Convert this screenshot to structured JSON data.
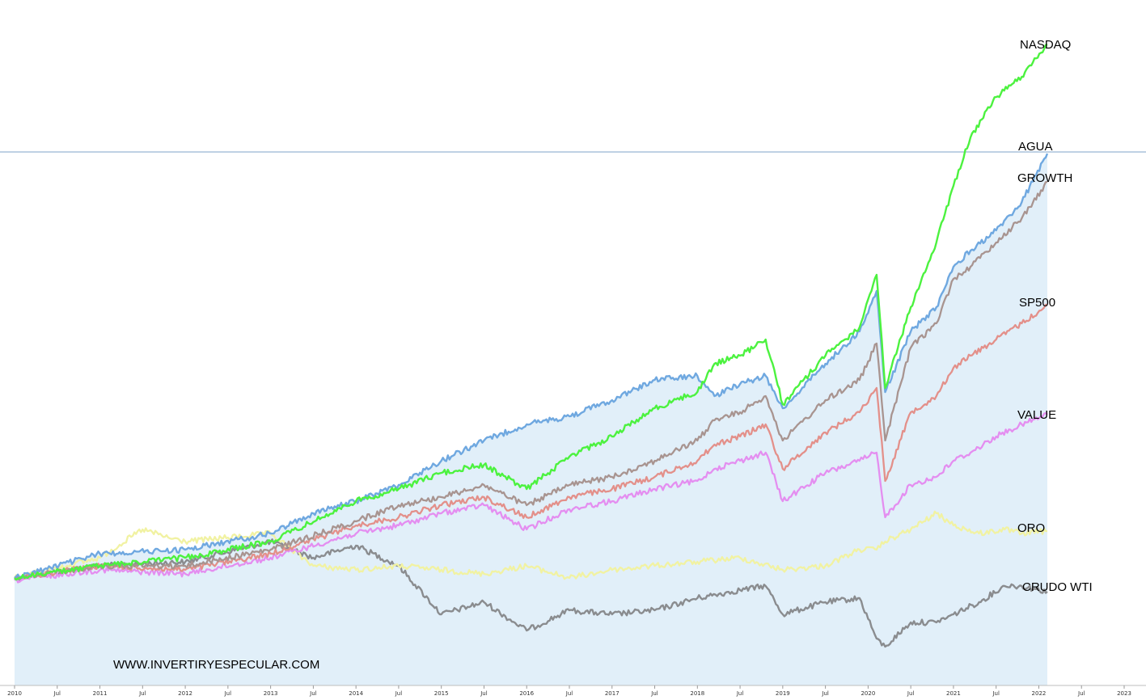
{
  "chart_data": {
    "type": "line",
    "title": "",
    "xlabel": "",
    "ylabel": "",
    "x_ticks": [
      "2010",
      "Jul",
      "2011",
      "Jul",
      "2012",
      "Jul",
      "2013",
      "Jul",
      "2014",
      "Jul",
      "2015",
      "Jul",
      "2016",
      "Jul",
      "2017",
      "Jul",
      "2018",
      "Jul",
      "2019",
      "Jul",
      "2020",
      "Jul",
      "2021",
      "Jul",
      "2022",
      "Jul",
      "2023"
    ],
    "xlim": [
      "2010-01",
      "2023-01"
    ],
    "grid": false,
    "legend": "none",
    "watermark": "WWW.INVERTIRYESPECULAR.COM",
    "reference_line": {
      "series": "AGUA",
      "color": "#7fa3c8"
    },
    "series": [
      {
        "name": "NASDAQ",
        "color": "#4cf23f",
        "width": 2.4,
        "points": [
          [
            2010.0,
            715
          ],
          [
            2011.0,
            700
          ],
          [
            2012.0,
            690
          ],
          [
            2013.0,
            670
          ],
          [
            2014.0,
            620
          ],
          [
            2014.5,
            605
          ],
          [
            2015.0,
            585
          ],
          [
            2015.5,
            575
          ],
          [
            2016.0,
            605
          ],
          [
            2016.5,
            565
          ],
          [
            2017.0,
            540
          ],
          [
            2017.5,
            505
          ],
          [
            2018.0,
            485
          ],
          [
            2018.2,
            450
          ],
          [
            2018.5,
            440
          ],
          [
            2018.8,
            420
          ],
          [
            2019.0,
            500
          ],
          [
            2019.5,
            440
          ],
          [
            2019.9,
            405
          ],
          [
            2020.1,
            340
          ],
          [
            2020.2,
            480
          ],
          [
            2020.5,
            380
          ],
          [
            2020.8,
            300
          ],
          [
            2021.0,
            230
          ],
          [
            2021.2,
            170
          ],
          [
            2021.5,
            120
          ],
          [
            2021.8,
            95
          ],
          [
            2022.1,
            55
          ]
        ]
      },
      {
        "name": "AGUA",
        "color": "#6fa8e0",
        "width": 2.4,
        "points": [
          [
            2010.0,
            715
          ],
          [
            2011.0,
            685
          ],
          [
            2012.0,
            680
          ],
          [
            2013.0,
            660
          ],
          [
            2013.5,
            635
          ],
          [
            2014.0,
            620
          ],
          [
            2014.5,
            600
          ],
          [
            2015.0,
            570
          ],
          [
            2015.5,
            545
          ],
          [
            2016.0,
            525
          ],
          [
            2016.5,
            515
          ],
          [
            2017.0,
            495
          ],
          [
            2017.5,
            470
          ],
          [
            2018.0,
            465
          ],
          [
            2018.2,
            490
          ],
          [
            2018.5,
            475
          ],
          [
            2018.8,
            465
          ],
          [
            2019.0,
            505
          ],
          [
            2019.5,
            450
          ],
          [
            2019.9,
            410
          ],
          [
            2020.1,
            360
          ],
          [
            2020.2,
            485
          ],
          [
            2020.5,
            410
          ],
          [
            2020.8,
            380
          ],
          [
            2021.0,
            330
          ],
          [
            2021.2,
            310
          ],
          [
            2021.5,
            285
          ],
          [
            2021.8,
            250
          ],
          [
            2022.1,
            190
          ]
        ]
      },
      {
        "name": "GROWTH",
        "color": "#a89490",
        "width": 2.3,
        "points": [
          [
            2010.0,
            715
          ],
          [
            2011.0,
            700
          ],
          [
            2012.0,
            700
          ],
          [
            2013.0,
            680
          ],
          [
            2014.0,
            645
          ],
          [
            2014.5,
            625
          ],
          [
            2015.0,
            615
          ],
          [
            2015.5,
            600
          ],
          [
            2016.0,
            625
          ],
          [
            2016.5,
            600
          ],
          [
            2017.0,
            590
          ],
          [
            2017.5,
            570
          ],
          [
            2018.0,
            545
          ],
          [
            2018.2,
            520
          ],
          [
            2018.5,
            510
          ],
          [
            2018.8,
            490
          ],
          [
            2019.0,
            545
          ],
          [
            2019.5,
            495
          ],
          [
            2019.9,
            470
          ],
          [
            2020.1,
            425
          ],
          [
            2020.2,
            545
          ],
          [
            2020.5,
            430
          ],
          [
            2020.8,
            400
          ],
          [
            2021.0,
            345
          ],
          [
            2021.2,
            330
          ],
          [
            2021.5,
            300
          ],
          [
            2021.8,
            270
          ],
          [
            2022.1,
            225
          ]
        ]
      },
      {
        "name": "SP500",
        "color": "#e3908a",
        "width": 2.3,
        "points": [
          [
            2010.0,
            715
          ],
          [
            2011.0,
            700
          ],
          [
            2012.0,
            705
          ],
          [
            2013.0,
            685
          ],
          [
            2014.0,
            650
          ],
          [
            2014.5,
            640
          ],
          [
            2015.0,
            625
          ],
          [
            2015.5,
            615
          ],
          [
            2016.0,
            640
          ],
          [
            2016.5,
            615
          ],
          [
            2017.0,
            605
          ],
          [
            2017.5,
            590
          ],
          [
            2018.0,
            570
          ],
          [
            2018.2,
            550
          ],
          [
            2018.5,
            540
          ],
          [
            2018.8,
            525
          ],
          [
            2019.0,
            580
          ],
          [
            2019.5,
            535
          ],
          [
            2019.9,
            510
          ],
          [
            2020.1,
            480
          ],
          [
            2020.2,
            595
          ],
          [
            2020.5,
            510
          ],
          [
            2020.8,
            490
          ],
          [
            2021.0,
            455
          ],
          [
            2021.2,
            440
          ],
          [
            2021.5,
            420
          ],
          [
            2021.8,
            400
          ],
          [
            2022.1,
            378
          ]
        ]
      },
      {
        "name": "VALUE",
        "color": "#e48ef0",
        "width": 2.3,
        "points": [
          [
            2010.0,
            718
          ],
          [
            2011.0,
            705
          ],
          [
            2012.0,
            710
          ],
          [
            2013.0,
            690
          ],
          [
            2014.0,
            660
          ],
          [
            2014.5,
            650
          ],
          [
            2015.0,
            635
          ],
          [
            2015.5,
            625
          ],
          [
            2016.0,
            655
          ],
          [
            2016.5,
            630
          ],
          [
            2017.0,
            620
          ],
          [
            2017.5,
            605
          ],
          [
            2018.0,
            595
          ],
          [
            2018.2,
            580
          ],
          [
            2018.5,
            570
          ],
          [
            2018.8,
            560
          ],
          [
            2019.0,
            620
          ],
          [
            2019.5,
            585
          ],
          [
            2019.9,
            570
          ],
          [
            2020.1,
            560
          ],
          [
            2020.2,
            640
          ],
          [
            2020.5,
            600
          ],
          [
            2020.8,
            590
          ],
          [
            2021.0,
            570
          ],
          [
            2021.2,
            560
          ],
          [
            2021.5,
            540
          ],
          [
            2021.8,
            525
          ],
          [
            2022.1,
            513
          ]
        ]
      },
      {
        "name": "ORO",
        "color": "#f1f2a2",
        "width": 2.3,
        "points": [
          [
            2010.0,
            715
          ],
          [
            2011.0,
            690
          ],
          [
            2011.5,
            655
          ],
          [
            2011.8,
            665
          ],
          [
            2012.0,
            670
          ],
          [
            2013.0,
            660
          ],
          [
            2013.5,
            700
          ],
          [
            2014.0,
            705
          ],
          [
            2014.5,
            700
          ],
          [
            2015.0,
            705
          ],
          [
            2015.5,
            710
          ],
          [
            2016.0,
            700
          ],
          [
            2016.5,
            715
          ],
          [
            2017.0,
            705
          ],
          [
            2017.5,
            700
          ],
          [
            2018.0,
            695
          ],
          [
            2018.5,
            690
          ],
          [
            2019.0,
            705
          ],
          [
            2019.5,
            700
          ],
          [
            2019.9,
            680
          ],
          [
            2020.1,
            680
          ],
          [
            2020.2,
            670
          ],
          [
            2020.5,
            655
          ],
          [
            2020.8,
            635
          ],
          [
            2021.0,
            650
          ],
          [
            2021.3,
            660
          ],
          [
            2021.6,
            655
          ],
          [
            2021.8,
            660
          ],
          [
            2022.1,
            657
          ]
        ]
      },
      {
        "name": "CRUDO WTI",
        "color": "#8a8c8f",
        "width": 2.4,
        "points": [
          [
            2010.0,
            715
          ],
          [
            2011.0,
            700
          ],
          [
            2012.0,
            695
          ],
          [
            2013.0,
            670
          ],
          [
            2013.5,
            690
          ],
          [
            2014.0,
            675
          ],
          [
            2014.5,
            700
          ],
          [
            2015.0,
            760
          ],
          [
            2015.5,
            745
          ],
          [
            2016.0,
            780
          ],
          [
            2016.5,
            755
          ],
          [
            2017.0,
            760
          ],
          [
            2017.5,
            755
          ],
          [
            2018.0,
            740
          ],
          [
            2018.5,
            730
          ],
          [
            2018.8,
            725
          ],
          [
            2019.0,
            760
          ],
          [
            2019.5,
            745
          ],
          [
            2019.9,
            740
          ],
          [
            2020.1,
            790
          ],
          [
            2020.2,
            800
          ],
          [
            2020.5,
            770
          ],
          [
            2020.8,
            770
          ],
          [
            2021.0,
            760
          ],
          [
            2021.3,
            745
          ],
          [
            2021.6,
            725
          ],
          [
            2021.8,
            725
          ],
          [
            2022.1,
            732
          ]
        ]
      }
    ]
  }
}
